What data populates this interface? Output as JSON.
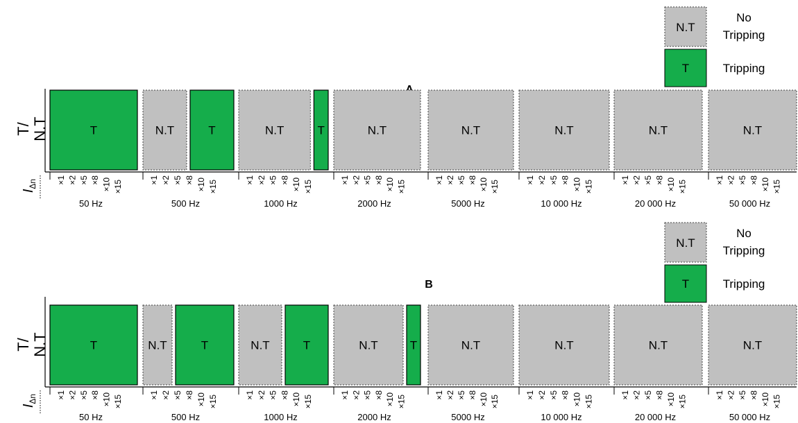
{
  "colors": {
    "tripping": "#15ad4b",
    "no_tripping": "#c0c0c0",
    "axis": "#000000"
  },
  "legend": {
    "no_tripping_box": "N.T",
    "no_tripping_label_line1": "No",
    "no_tripping_label_line2": "Tripping",
    "tripping_box": "T",
    "tripping_label": "Tripping"
  },
  "y_axis": {
    "label_line1": "T/",
    "label_line2": "N.T",
    "current_symbol": "I",
    "current_subscript": "Δn"
  },
  "panels": [
    {
      "title": "A",
      "groups": [
        {
          "frequency": "50 Hz",
          "ticks": [
            "×1",
            "×2",
            "×5",
            "×8",
            "×10",
            "×15"
          ],
          "blocks": [
            {
              "label": "T",
              "state": "tripping",
              "span": 6
            }
          ]
        },
        {
          "frequency": "500 Hz",
          "ticks": [
            "×1",
            "×2",
            "×5",
            "×8",
            "×10",
            "×15"
          ],
          "blocks": [
            {
              "label": "N.T",
              "state": "no_tripping",
              "span": 3
            },
            {
              "label": "T",
              "state": "tripping",
              "span": 3
            }
          ]
        },
        {
          "frequency": "1000 Hz",
          "ticks": [
            "×1",
            "×2",
            "×5",
            "×8",
            "×10",
            "×15"
          ],
          "blocks": [
            {
              "label": "N.T",
              "state": "no_tripping",
              "span": 5
            },
            {
              "label": "T",
              "state": "tripping",
              "span": 1
            }
          ]
        },
        {
          "frequency": "2000 Hz",
          "ticks": [
            "×1",
            "×2",
            "×5",
            "×8",
            "×10",
            "×15"
          ],
          "blocks": [
            {
              "label": "N.T",
              "state": "no_tripping",
              "span": 6
            }
          ]
        },
        {
          "frequency": "5000 Hz",
          "ticks": [
            "×1",
            "×2",
            "×5",
            "×8",
            "×10",
            "×15"
          ],
          "blocks": [
            {
              "label": "N.T",
              "state": "no_tripping",
              "span": 6
            }
          ]
        },
        {
          "frequency": "10 000 Hz",
          "ticks": [
            "×1",
            "×2",
            "×5",
            "×8",
            "×10",
            "×15"
          ],
          "blocks": [
            {
              "label": "N.T",
              "state": "no_tripping",
              "span": 6
            }
          ]
        },
        {
          "frequency": "20 000 Hz",
          "ticks": [
            "×1",
            "×2",
            "×5",
            "×8",
            "×10",
            "×15"
          ],
          "blocks": [
            {
              "label": "N.T",
              "state": "no_tripping",
              "span": 6
            }
          ]
        },
        {
          "frequency": "50 000 Hz",
          "ticks": [
            "×1",
            "×2",
            "×5",
            "×8",
            "×10",
            "×15"
          ],
          "blocks": [
            {
              "label": "N.T",
              "state": "no_tripping",
              "span": 6
            }
          ]
        }
      ]
    },
    {
      "title": "B",
      "groups": [
        {
          "frequency": "50 Hz",
          "ticks": [
            "×1",
            "×2",
            "×5",
            "×8",
            "×10",
            "×15"
          ],
          "blocks": [
            {
              "label": "T",
              "state": "tripping",
              "span": 6
            }
          ]
        },
        {
          "frequency": "500 Hz",
          "ticks": [
            "×1",
            "×2",
            "×5",
            "×8",
            "×10",
            "×15"
          ],
          "blocks": [
            {
              "label": "N.T",
              "state": "no_tripping",
              "span": 2
            },
            {
              "label": "T",
              "state": "tripping",
              "span": 4
            }
          ]
        },
        {
          "frequency": "1000 Hz",
          "ticks": [
            "×1",
            "×2",
            "×5",
            "×8",
            "×10",
            "×15"
          ],
          "blocks": [
            {
              "label": "N.T",
              "state": "no_tripping",
              "span": 3
            },
            {
              "label": "T",
              "state": "tripping",
              "span": 3
            }
          ]
        },
        {
          "frequency": "2000 Hz",
          "ticks": [
            "×1",
            "×2",
            "×5",
            "×8",
            "×10",
            "×15"
          ],
          "blocks": [
            {
              "label": "N.T",
              "state": "no_tripping",
              "span": 5
            },
            {
              "label": "T",
              "state": "tripping",
              "span": 1
            }
          ]
        },
        {
          "frequency": "5000 Hz",
          "ticks": [
            "×1",
            "×2",
            "×5",
            "×8",
            "×10",
            "×15"
          ],
          "blocks": [
            {
              "label": "N.T",
              "state": "no_tripping",
              "span": 6
            }
          ]
        },
        {
          "frequency": "10 000 Hz",
          "ticks": [
            "×1",
            "×2",
            "×5",
            "×8",
            "×10",
            "×15"
          ],
          "blocks": [
            {
              "label": "N.T",
              "state": "no_tripping",
              "span": 6
            }
          ]
        },
        {
          "frequency": "20 000 Hz",
          "ticks": [
            "×1",
            "×2",
            "×5",
            "×8",
            "×10",
            "×15"
          ],
          "blocks": [
            {
              "label": "N.T",
              "state": "no_tripping",
              "span": 6
            }
          ]
        },
        {
          "frequency": "50 000 Hz",
          "ticks": [
            "×1",
            "×2",
            "×5",
            "×8",
            "×10",
            "×15"
          ],
          "blocks": [
            {
              "label": "N.T",
              "state": "no_tripping",
              "span": 6
            }
          ]
        }
      ]
    }
  ]
}
